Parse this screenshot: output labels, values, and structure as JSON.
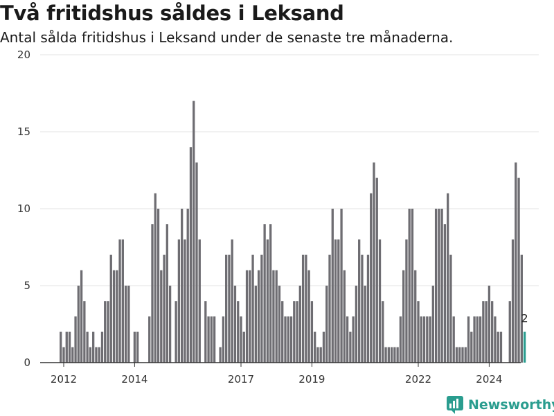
{
  "header": {
    "title": "Två fritidshus såldes i Leksand",
    "subtitle": "Antal sålda fritidshus i Leksand under de senaste tre månaderna."
  },
  "brand": {
    "name": "Newsworthy",
    "color": "#2a9d8f"
  },
  "chart_data": {
    "type": "bar",
    "title": "Två fritidshus såldes i Leksand",
    "subtitle": "Antal sålda fritidshus i Leksand under de senaste tre månaderna.",
    "xlabel": "",
    "ylabel": "",
    "ylim": [
      0,
      20
    ],
    "yticks": [
      0,
      5,
      10,
      15,
      20
    ],
    "grid": true,
    "xticks": [
      "2012",
      "2014",
      "2017",
      "2019",
      "2022",
      "2024"
    ],
    "x_start": "2011-12",
    "frequency": "monthly",
    "colors": {
      "bar": "#6e6d72",
      "highlight": "#2a9d8f"
    },
    "values": [
      2,
      1,
      2,
      2,
      1,
      3,
      5,
      6,
      4,
      2,
      1,
      2,
      1,
      1,
      2,
      4,
      4,
      7,
      6,
      6,
      8,
      8,
      5,
      5,
      0,
      2,
      2,
      0,
      0,
      0,
      3,
      9,
      11,
      10,
      6,
      7,
      9,
      5,
      0,
      4,
      8,
      10,
      8,
      10,
      14,
      17,
      13,
      8,
      0,
      4,
      3,
      3,
      3,
      0,
      1,
      3,
      7,
      7,
      8,
      5,
      4,
      3,
      2,
      6,
      6,
      7,
      5,
      6,
      7,
      9,
      8,
      9,
      6,
      6,
      5,
      4,
      3,
      3,
      3,
      4,
      4,
      5,
      7,
      7,
      6,
      4,
      2,
      1,
      1,
      2,
      5,
      7,
      10,
      8,
      8,
      10,
      6,
      3,
      2,
      3,
      5,
      8,
      7,
      5,
      7,
      11,
      13,
      12,
      8,
      4,
      1,
      1,
      1,
      1,
      1,
      3,
      6,
      8,
      10,
      10,
      6,
      4,
      3,
      3,
      3,
      3,
      5,
      10,
      10,
      10,
      9,
      11,
      7,
      3,
      1,
      1,
      1,
      1,
      3,
      2,
      3,
      3,
      3,
      4,
      4,
      5,
      4,
      3,
      2,
      2,
      0,
      0,
      4,
      8,
      13,
      12,
      7,
      2
    ],
    "highlight_last": true,
    "last_label": "2"
  }
}
